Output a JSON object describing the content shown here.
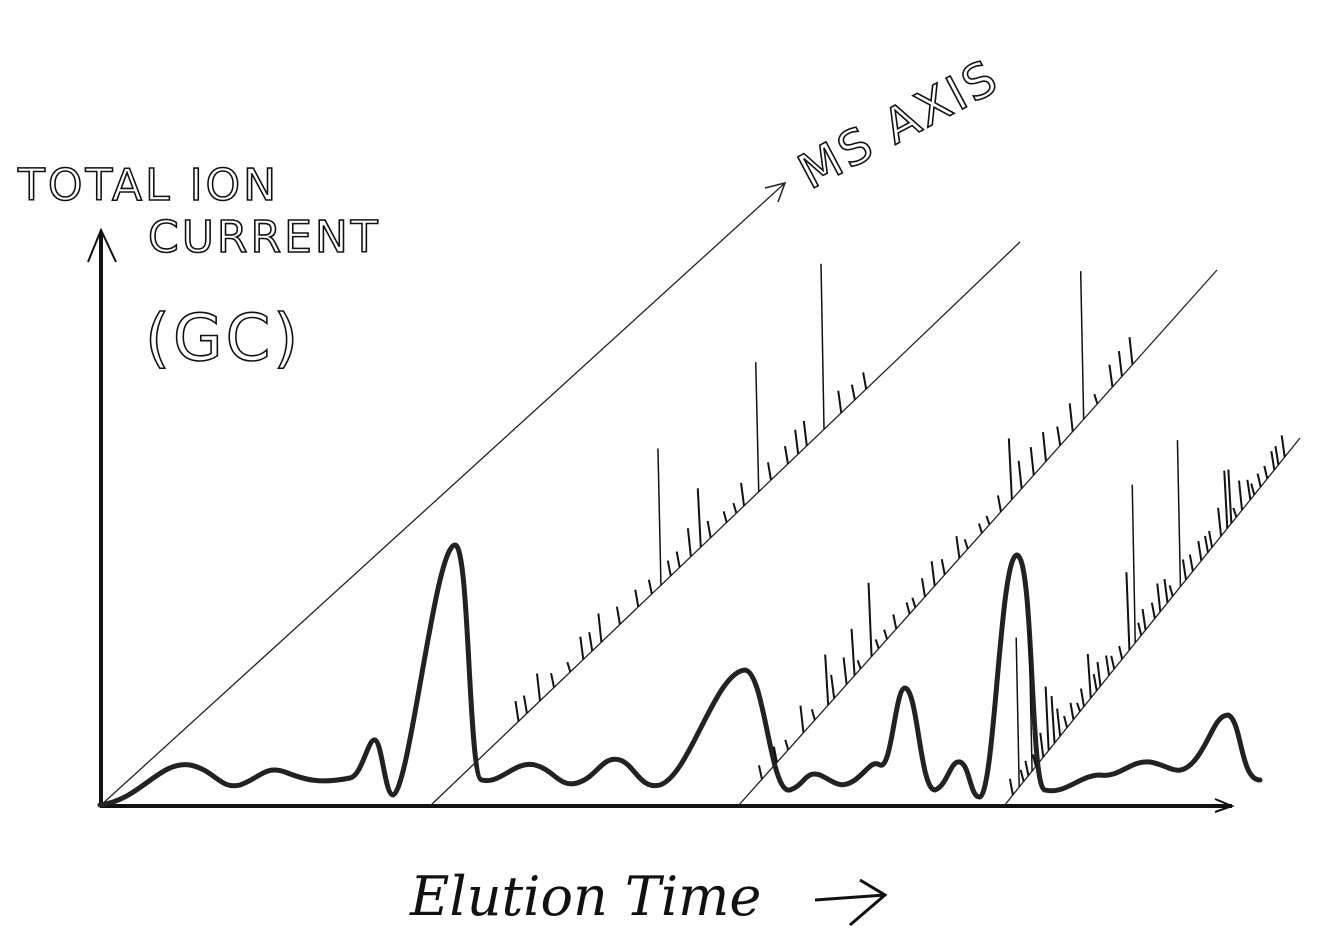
{
  "diagram": {
    "y_axis_label": [
      "TOTAL ION",
      "CURRENT",
      "(GC)"
    ],
    "ms_axis_label": "MS AXIS",
    "x_axis_label": "Elution Time"
  }
}
